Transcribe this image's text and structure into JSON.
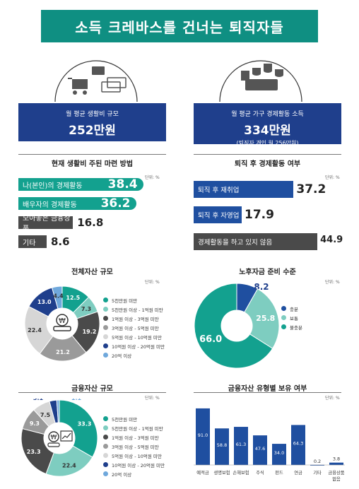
{
  "page_title": "소득 크레바스를 건너는 퇴직자들",
  "living_cost": {
    "label": "월 평균 생활비 규모",
    "value": "252만원"
  },
  "household_income": {
    "label": "월 평균 가구 경제활동 소득",
    "value": "334만원",
    "note": "(퇴직자 개인 월 256만원)"
  },
  "unit_label": "단위: %",
  "colors": {
    "teal": "#0f8f82",
    "navy": "#1f3f8c",
    "gray_dark": "#4a4a4a"
  },
  "chart_data": [
    {
      "type": "bar",
      "orientation": "horizontal",
      "title": "현재 생활비 주된 마련 방법",
      "unit": "단위: %",
      "categories": [
        "나(본인)의 경제활동",
        "배우자의 경제활동",
        "모아놓은 금융상품",
        "기타"
      ],
      "values": [
        38.4,
        36.2,
        16.8,
        8.6
      ],
      "colors": [
        "#13a18f",
        "#13a18f",
        "#4a4a4a",
        "#4a4a4a"
      ]
    },
    {
      "type": "bar",
      "orientation": "horizontal",
      "title": "퇴직 후 경제활동 여부",
      "unit": "단위: %",
      "categories": [
        "퇴직 후 재취업",
        "퇴직 후 자영업",
        "경제활동을 하고 있지 않음"
      ],
      "values": [
        37.2,
        17.9,
        44.9
      ],
      "colors": [
        "#1f4fa0",
        "#1f4fa0",
        "#4a4a4a"
      ]
    },
    {
      "type": "pie",
      "title": "전체자산 규모",
      "unit": "단위: %",
      "categories": [
        "5천만원 미만",
        "5천만원 이상 - 1억원 미만",
        "1억원 이상 - 3억원 미만",
        "3억원 이상 - 5억원 미만",
        "5억원 이상 - 10억원 미만",
        "10억원 이상 - 20억원 미만",
        "20억 이상"
      ],
      "values": [
        12.5,
        7.3,
        19.2,
        21.2,
        22.4,
        13.0,
        4.4
      ],
      "colors": [
        "#13a18f",
        "#7ecdc0",
        "#4a4a4a",
        "#9a9a9a",
        "#d6d6d6",
        "#1f3f8c",
        "#6fa8dc"
      ]
    },
    {
      "type": "pie",
      "title": "노후자금 준비 수준",
      "unit": "단위: %",
      "categories": [
        "충분",
        "보통",
        "불충분"
      ],
      "values": [
        8.2,
        25.8,
        66.0
      ],
      "colors": [
        "#1f4fa0",
        "#7ecdc0",
        "#13a18f"
      ]
    },
    {
      "type": "pie",
      "title": "금융자산 규모",
      "unit": "단위: %",
      "categories": [
        "5천만원 미만",
        "5천만원 이상 - 1억원 미만",
        "1억원 이상 - 3억원 미만",
        "3억원 이상 - 5억원 미만",
        "5억원 이상 - 10억원 미만",
        "10억원 이상 - 20억원 미만",
        "20억 이상"
      ],
      "values": [
        33.3,
        22.4,
        23.3,
        9.3,
        7.5,
        3.1,
        1.1
      ],
      "colors": [
        "#13a18f",
        "#7ecdc0",
        "#4a4a4a",
        "#9a9a9a",
        "#d6d6d6",
        "#1f3f8c",
        "#6fa8dc"
      ]
    },
    {
      "type": "bar",
      "orientation": "vertical",
      "title": "금융자산 유형별 보유 여부",
      "unit": "단위: %",
      "categories": [
        "예적금",
        "생명보험",
        "손해보험",
        "주식",
        "펀드",
        "연금",
        "기타",
        "금융상품 없음"
      ],
      "values": [
        91.0,
        58.8,
        61.3,
        47.6,
        34.0,
        64.3,
        0.2,
        3.8
      ],
      "ylim": [
        0,
        100
      ],
      "color": "#1f4fa0"
    }
  ]
}
